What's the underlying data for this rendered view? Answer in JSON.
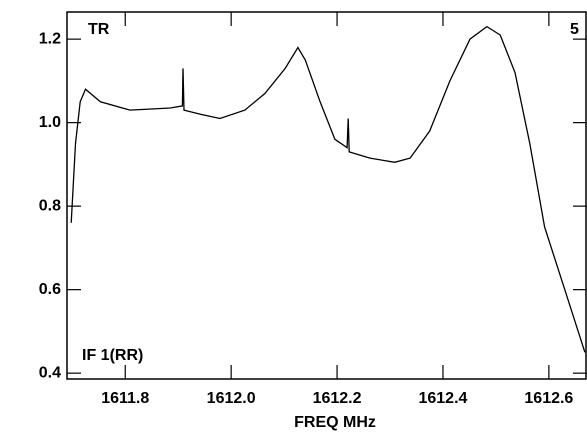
{
  "chart_data": {
    "type": "line",
    "xlabel": "FREQ MHz",
    "annotations": [
      "TR",
      "5",
      "IF 1(RR)"
    ],
    "x": [
      1611.698,
      1611.706,
      1611.715,
      1611.725,
      1611.753,
      1611.809,
      1611.885,
      1611.908,
      1611.909,
      1611.911,
      1611.942,
      1611.979,
      1612.026,
      1612.064,
      1612.102,
      1612.126,
      1612.14,
      1612.168,
      1612.196,
      1612.219,
      1612.221,
      1612.223,
      1612.262,
      1612.309,
      1612.338,
      1612.375,
      1612.413,
      1612.451,
      1612.483,
      1612.508,
      1612.536,
      1612.564,
      1612.592,
      1612.63,
      1612.668
    ],
    "series": [
      {
        "color": "#000000",
        "values": [
          0.76,
          0.95,
          1.05,
          1.08,
          1.05,
          1.03,
          1.035,
          1.04,
          1.13,
          1.03,
          1.02,
          1.01,
          1.03,
          1.07,
          1.13,
          1.18,
          1.15,
          1.05,
          0.96,
          0.94,
          1.01,
          0.93,
          0.915,
          0.905,
          0.915,
          0.98,
          1.1,
          1.2,
          1.23,
          1.21,
          1.12,
          0.95,
          0.75,
          0.6,
          0.45
        ]
      }
    ],
    "xlim": [
      1611.69,
      1612.672
    ],
    "ylim": [
      0.386,
      1.265
    ],
    "xticks": [
      1611.8,
      {
        "value": 1612,
        "label": "1612.0"
      },
      1612.2,
      1612.4,
      1612.6
    ],
    "yticks": [
      0.4,
      0.6,
      0.8,
      {
        "value": 1,
        "label": "1.0"
      },
      1.2
    ]
  }
}
